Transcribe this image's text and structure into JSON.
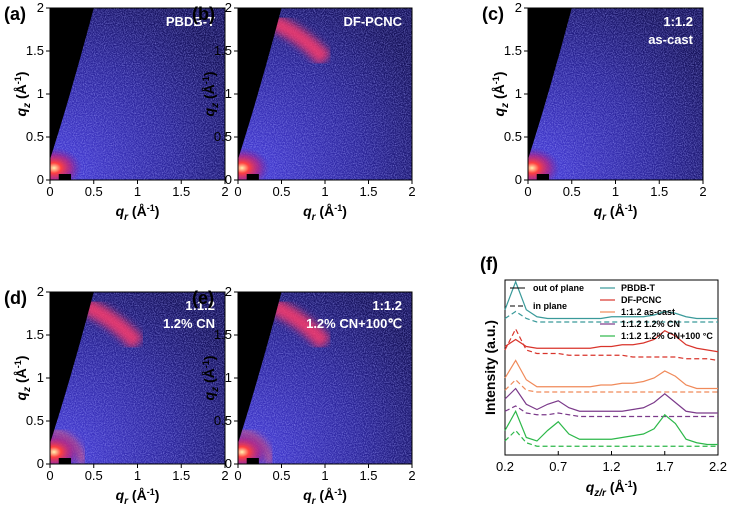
{
  "chart_data": [
    {
      "type": "image",
      "panel": "(a)",
      "annotation": [
        "PBDB-T"
      ],
      "xlim": [
        0,
        2
      ],
      "ylim": [
        0,
        2
      ],
      "xticks": [
        0,
        0.5,
        1,
        1.5,
        2
      ],
      "yticks": [
        0,
        0.5,
        1,
        1.5,
        2
      ],
      "xlabel": {
        "q": "q",
        "sub": "r",
        "unit": " (Å",
        "sup": "-1",
        "end": ")"
      },
      "ylabel": {
        "q": "q",
        "sub": "z",
        "unit": " (Å",
        "sup": "-1",
        "end": ")"
      }
    },
    {
      "type": "image",
      "panel": "(b)",
      "annotation": [
        "DF-PCNC"
      ],
      "xlim": [
        0,
        2
      ],
      "ylim": [
        0,
        2
      ],
      "xticks": [
        0,
        0.5,
        1,
        1.5,
        2
      ],
      "yticks": [
        0,
        0.5,
        1,
        1.5,
        2
      ],
      "xlabel": {
        "q": "q",
        "sub": "r",
        "unit": " (Å",
        "sup": "-1",
        "end": ")"
      },
      "ylabel": {
        "q": "q",
        "sub": "z",
        "unit": " (Å",
        "sup": "-1",
        "end": ")"
      }
    },
    {
      "type": "image",
      "panel": "(c)",
      "annotation": [
        "1:1.2",
        "as-cast"
      ],
      "xlim": [
        0,
        2
      ],
      "ylim": [
        0,
        2
      ],
      "xticks": [
        0,
        0.5,
        1,
        1.5,
        2
      ],
      "yticks": [
        0,
        0.5,
        1,
        1.5,
        2
      ],
      "xlabel": {
        "q": "q",
        "sub": "r",
        "unit": " (Å",
        "sup": "-1",
        "end": ")"
      },
      "ylabel": {
        "q": "q",
        "sub": "z",
        "unit": " (Å",
        "sup": "-1",
        "end": ")"
      }
    },
    {
      "type": "image",
      "panel": "(d)",
      "annotation": [
        "1:1.2",
        "1.2% CN"
      ],
      "xlim": [
        0,
        2
      ],
      "ylim": [
        0,
        2
      ],
      "xticks": [
        0,
        0.5,
        1,
        1.5,
        2
      ],
      "yticks": [
        0,
        0.5,
        1,
        1.5,
        2
      ],
      "xlabel": {
        "q": "q",
        "sub": "r",
        "unit": " (Å",
        "sup": "-1",
        "end": ")"
      },
      "ylabel": {
        "q": "q",
        "sub": "z",
        "unit": " (Å",
        "sup": "-1",
        "end": ")"
      }
    },
    {
      "type": "image",
      "panel": "(e)",
      "annotation": [
        "1:1.2",
        "1.2% CN+100℃"
      ],
      "xlim": [
        0,
        2
      ],
      "ylim": [
        0,
        2
      ],
      "xticks": [
        0,
        0.5,
        1,
        1.5,
        2
      ],
      "yticks": [
        0,
        0.5,
        1,
        1.5,
        2
      ],
      "xlabel": {
        "q": "q",
        "sub": "r",
        "unit": " (Å",
        "sup": "-1",
        "end": ")"
      },
      "ylabel": {
        "q": "q",
        "sub": "z",
        "unit": " (Å",
        "sup": "-1",
        "end": ")"
      }
    },
    {
      "type": "line",
      "panel": "(f)",
      "ylabel": "Intensity (a.u.)",
      "xlabel": {
        "q": "q",
        "sub": "z/r",
        "unit": " (Å",
        "sup": "-1",
        "end": ")"
      },
      "xlim": [
        0.2,
        2.2
      ],
      "xticks": [
        0.2,
        0.7,
        1.2,
        1.7,
        2.2
      ],
      "ylim": [
        0,
        10
      ],
      "line_styles": [
        {
          "name": "out of plane",
          "dashed": false
        },
        {
          "name": "in plane",
          "dashed": true
        }
      ],
      "x": [
        0.2,
        0.3,
        0.4,
        0.5,
        0.6,
        0.7,
        0.8,
        0.9,
        1.0,
        1.1,
        1.2,
        1.3,
        1.4,
        1.5,
        1.6,
        1.7,
        1.8,
        1.9,
        2.0,
        2.1,
        2.2
      ],
      "series": [
        {
          "name": "PBDB-T",
          "color": "#3a9a9a",
          "out_of_plane": [
            8.3,
            9.9,
            8.3,
            7.9,
            7.8,
            7.8,
            7.8,
            7.8,
            7.8,
            7.8,
            7.9,
            7.9,
            7.9,
            7.9,
            8.0,
            8.2,
            8.1,
            7.9,
            7.8,
            7.8,
            7.8
          ],
          "in_plane": [
            7.8,
            8.2,
            7.8,
            7.6,
            7.6,
            7.6,
            7.6,
            7.6,
            7.6,
            7.6,
            7.6,
            7.6,
            7.6,
            7.6,
            7.6,
            7.6,
            7.6,
            7.6,
            7.6,
            7.6,
            7.6
          ]
        },
        {
          "name": "DF-PCNC",
          "color": "#d9342b",
          "out_of_plane": [
            6.2,
            6.6,
            6.2,
            6.1,
            6.1,
            6.1,
            6.1,
            6.1,
            6.1,
            6.2,
            6.2,
            6.3,
            6.3,
            6.4,
            6.6,
            7.1,
            6.8,
            6.3,
            6.1,
            6.0,
            5.9
          ],
          "in_plane": [
            6.0,
            7.2,
            6.0,
            5.8,
            5.8,
            5.8,
            5.7,
            5.7,
            5.7,
            5.7,
            5.7,
            5.7,
            5.6,
            5.6,
            5.6,
            5.6,
            5.6,
            5.5,
            5.5,
            5.5,
            5.4
          ]
        },
        {
          "name": "1:1.2 as-cast",
          "color": "#f08a5a",
          "out_of_plane": [
            4.4,
            5.4,
            4.3,
            3.9,
            3.9,
            3.9,
            3.9,
            3.9,
            3.9,
            4.0,
            4.0,
            4.1,
            4.1,
            4.2,
            4.4,
            4.8,
            4.5,
            4.0,
            3.8,
            3.8,
            3.8
          ],
          "in_plane": [
            3.7,
            4.3,
            3.7,
            3.6,
            3.6,
            3.6,
            3.6,
            3.6,
            3.6,
            3.6,
            3.6,
            3.6,
            3.6,
            3.6,
            3.6,
            3.6,
            3.6,
            3.6,
            3.6,
            3.6,
            3.6
          ]
        },
        {
          "name": "1:1.2 1.2% CN",
          "color": "#7b3a8a",
          "out_of_plane": [
            3.2,
            3.8,
            2.9,
            2.6,
            2.9,
            3.1,
            2.7,
            2.5,
            2.5,
            2.5,
            2.5,
            2.5,
            2.6,
            2.7,
            3.0,
            3.5,
            3.0,
            2.5,
            2.4,
            2.4,
            2.4
          ],
          "in_plane": [
            2.5,
            2.8,
            2.4,
            2.3,
            2.3,
            2.4,
            2.3,
            2.2,
            2.2,
            2.2,
            2.2,
            2.2,
            2.2,
            2.2,
            2.2,
            2.2,
            2.2,
            2.2,
            2.2,
            2.2,
            2.2
          ]
        },
        {
          "name": "1:1.2 1.2% CN+100 °C",
          "color": "#2db84a",
          "out_of_plane": [
            1.4,
            2.5,
            1.0,
            0.8,
            1.4,
            1.9,
            1.2,
            0.9,
            0.9,
            0.9,
            0.9,
            1.0,
            1.1,
            1.2,
            1.5,
            2.3,
            1.8,
            0.9,
            0.7,
            0.6,
            0.6
          ],
          "in_plane": [
            0.8,
            1.4,
            0.7,
            0.5,
            0.5,
            0.5,
            0.5,
            0.5,
            0.5,
            0.5,
            0.5,
            0.5,
            0.5,
            0.5,
            0.5,
            0.5,
            0.5,
            0.5,
            0.5,
            0.5,
            0.5
          ]
        }
      ]
    }
  ]
}
